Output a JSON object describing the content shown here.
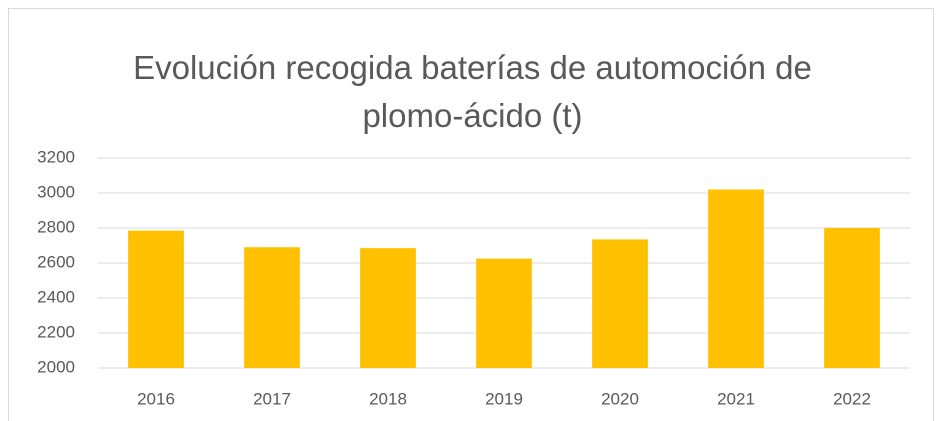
{
  "chart_data": {
    "type": "bar",
    "title": "Evolución recogida baterías de automoción de plomo-ácido (t)",
    "categories": [
      "2016",
      "2017",
      "2018",
      "2019",
      "2020",
      "2021",
      "2022"
    ],
    "values": [
      2785,
      2690,
      2685,
      2625,
      2735,
      3020,
      2800
    ],
    "color": "#ffc000",
    "ylim": [
      2000,
      3200
    ],
    "yticks": [
      2000,
      2200,
      2400,
      2600,
      2800,
      3000,
      3200
    ],
    "grid": true
  }
}
